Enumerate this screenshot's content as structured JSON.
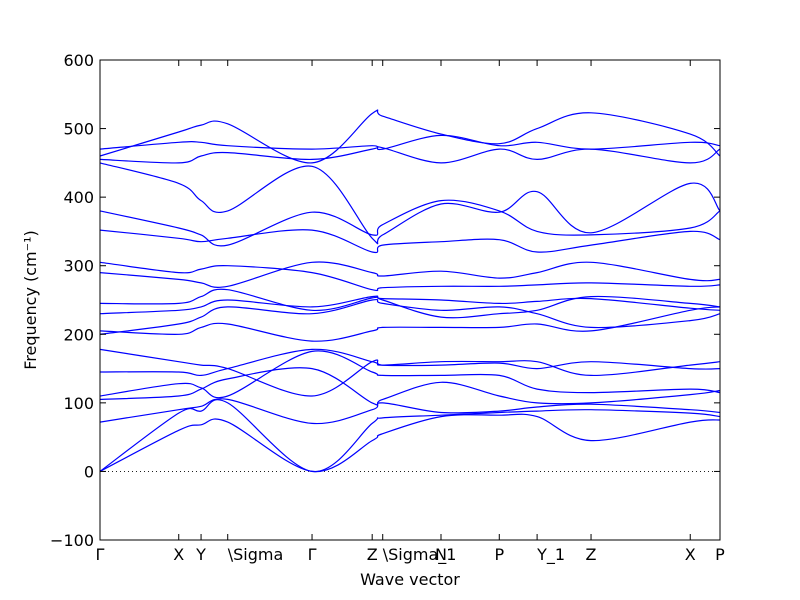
{
  "chart_data": {
    "type": "line",
    "xlabel": "Wave vector",
    "ylabel": "Frequency (cm⁻¹)",
    "ylim": [
      -100,
      600
    ],
    "yticks": [
      -100,
      0,
      100,
      200,
      300,
      400,
      500,
      600
    ],
    "zero_line": true,
    "xlim": [
      0,
      1
    ],
    "high_symmetry_points": [
      {
        "label": "Γ",
        "x": 0.0
      },
      {
        "label": "X",
        "x": 0.127
      },
      {
        "label": "Y",
        "x": 0.163
      },
      {
        "label": "\\Sigma",
        "x": 0.206
      },
      {
        "label": "Γ",
        "x": 0.342
      },
      {
        "label": "Z",
        "x": 0.439
      },
      {
        "label": "\\Sigma_1",
        "x": 0.456
      },
      {
        "label": "N",
        "x": 0.55
      },
      {
        "label": "P",
        "x": 0.644
      },
      {
        "label": "Y_1",
        "x": 0.705
      },
      {
        "label": "Z",
        "x": 0.792
      },
      {
        "label": "X",
        "x": 0.952
      },
      {
        "label": "P",
        "x": 1.0
      }
    ],
    "series": [
      {
        "values": [
          [
            0.0,
            0
          ],
          [
            0.127,
            60
          ],
          [
            0.163,
            68
          ],
          [
            0.206,
            72
          ],
          [
            0.342,
            0
          ],
          [
            0.439,
            45
          ],
          [
            0.456,
            55
          ],
          [
            0.55,
            80
          ],
          [
            0.644,
            82
          ],
          [
            0.705,
            80
          ],
          [
            0.792,
            45
          ],
          [
            0.952,
            72
          ],
          [
            1.0,
            75
          ]
        ]
      },
      {
        "values": [
          [
            0.0,
            0
          ],
          [
            0.127,
            85
          ],
          [
            0.163,
            88
          ],
          [
            0.206,
            100
          ],
          [
            0.342,
            0
          ],
          [
            0.439,
            70
          ],
          [
            0.456,
            78
          ],
          [
            0.55,
            82
          ],
          [
            0.644,
            86
          ],
          [
            0.705,
            88
          ],
          [
            0.792,
            90
          ],
          [
            0.952,
            85
          ],
          [
            1.0,
            80
          ]
        ]
      },
      {
        "values": [
          [
            0.0,
            72
          ],
          [
            0.127,
            90
          ],
          [
            0.163,
            95
          ],
          [
            0.206,
            105
          ],
          [
            0.342,
            70
          ],
          [
            0.439,
            90
          ],
          [
            0.456,
            100
          ],
          [
            0.55,
            86
          ],
          [
            0.644,
            88
          ],
          [
            0.705,
            94
          ],
          [
            0.792,
            98
          ],
          [
            0.952,
            90
          ],
          [
            1.0,
            86
          ]
        ]
      },
      {
        "values": [
          [
            0.0,
            105
          ],
          [
            0.127,
            110
          ],
          [
            0.163,
            120
          ],
          [
            0.206,
            135
          ],
          [
            0.342,
            150
          ],
          [
            0.439,
            100
          ],
          [
            0.456,
            105
          ],
          [
            0.55,
            130
          ],
          [
            0.644,
            110
          ],
          [
            0.705,
            100
          ],
          [
            0.792,
            100
          ],
          [
            0.952,
            112
          ],
          [
            1.0,
            118
          ]
        ]
      },
      {
        "values": [
          [
            0.0,
            110
          ],
          [
            0.127,
            128
          ],
          [
            0.163,
            122
          ],
          [
            0.206,
            110
          ],
          [
            0.342,
            175
          ],
          [
            0.439,
            145
          ],
          [
            0.456,
            140
          ],
          [
            0.55,
            140
          ],
          [
            0.644,
            140
          ],
          [
            0.705,
            120
          ],
          [
            0.792,
            115
          ],
          [
            0.952,
            120
          ],
          [
            1.0,
            115
          ]
        ]
      },
      {
        "values": [
          [
            0.0,
            145
          ],
          [
            0.127,
            145
          ],
          [
            0.163,
            140
          ],
          [
            0.206,
            150
          ],
          [
            0.342,
            178
          ],
          [
            0.439,
            160
          ],
          [
            0.456,
            155
          ],
          [
            0.55,
            160
          ],
          [
            0.644,
            160
          ],
          [
            0.705,
            160
          ],
          [
            0.792,
            140
          ],
          [
            0.952,
            155
          ],
          [
            1.0,
            160
          ]
        ]
      },
      {
        "values": [
          [
            0.0,
            178
          ],
          [
            0.127,
            160
          ],
          [
            0.163,
            155
          ],
          [
            0.206,
            150
          ],
          [
            0.342,
            110
          ],
          [
            0.439,
            160
          ],
          [
            0.456,
            155
          ],
          [
            0.55,
            155
          ],
          [
            0.644,
            158
          ],
          [
            0.705,
            150
          ],
          [
            0.792,
            160
          ],
          [
            0.952,
            150
          ],
          [
            1.0,
            150
          ]
        ]
      },
      {
        "values": [
          [
            0.0,
            200
          ],
          [
            0.127,
            215
          ],
          [
            0.163,
            225
          ],
          [
            0.206,
            240
          ],
          [
            0.342,
            230
          ],
          [
            0.439,
            250
          ],
          [
            0.456,
            245
          ],
          [
            0.55,
            235
          ],
          [
            0.644,
            240
          ],
          [
            0.705,
            230
          ],
          [
            0.792,
            210
          ],
          [
            0.952,
            220
          ],
          [
            1.0,
            230
          ]
        ]
      },
      {
        "values": [
          [
            0.0,
            205
          ],
          [
            0.127,
            200
          ],
          [
            0.163,
            210
          ],
          [
            0.206,
            215
          ],
          [
            0.342,
            190
          ],
          [
            0.439,
            205
          ],
          [
            0.456,
            210
          ],
          [
            0.55,
            210
          ],
          [
            0.644,
            210
          ],
          [
            0.705,
            215
          ],
          [
            0.792,
            205
          ],
          [
            0.952,
            235
          ],
          [
            1.0,
            240
          ]
        ]
      },
      {
        "values": [
          [
            0.0,
            230
          ],
          [
            0.127,
            235
          ],
          [
            0.163,
            240
          ],
          [
            0.206,
            250
          ],
          [
            0.342,
            240
          ],
          [
            0.439,
            255
          ],
          [
            0.456,
            250
          ],
          [
            0.55,
            225
          ],
          [
            0.644,
            230
          ],
          [
            0.705,
            235
          ],
          [
            0.792,
            255
          ],
          [
            0.952,
            245
          ],
          [
            1.0,
            240
          ]
        ]
      },
      {
        "values": [
          [
            0.0,
            245
          ],
          [
            0.127,
            245
          ],
          [
            0.163,
            255
          ],
          [
            0.206,
            265
          ],
          [
            0.342,
            235
          ],
          [
            0.439,
            253
          ],
          [
            0.456,
            252
          ],
          [
            0.55,
            250
          ],
          [
            0.644,
            245
          ],
          [
            0.705,
            248
          ],
          [
            0.792,
            252
          ],
          [
            0.952,
            238
          ],
          [
            1.0,
            235
          ]
        ]
      },
      {
        "values": [
          [
            0.0,
            290
          ],
          [
            0.127,
            280
          ],
          [
            0.163,
            275
          ],
          [
            0.206,
            270
          ],
          [
            0.342,
            305
          ],
          [
            0.439,
            290
          ],
          [
            0.456,
            285
          ],
          [
            0.55,
            292
          ],
          [
            0.644,
            282
          ],
          [
            0.705,
            290
          ],
          [
            0.792,
            305
          ],
          [
            0.952,
            280
          ],
          [
            1.0,
            280
          ]
        ]
      },
      {
        "values": [
          [
            0.0,
            305
          ],
          [
            0.127,
            290
          ],
          [
            0.163,
            295
          ],
          [
            0.206,
            300
          ],
          [
            0.342,
            290
          ],
          [
            0.439,
            265
          ],
          [
            0.456,
            268
          ],
          [
            0.55,
            270
          ],
          [
            0.644,
            270
          ],
          [
            0.705,
            272
          ],
          [
            0.792,
            275
          ],
          [
            0.952,
            270
          ],
          [
            1.0,
            272
          ]
        ]
      },
      {
        "values": [
          [
            0.0,
            352
          ],
          [
            0.127,
            340
          ],
          [
            0.163,
            335
          ],
          [
            0.206,
            340
          ],
          [
            0.342,
            352
          ],
          [
            0.439,
            320
          ],
          [
            0.456,
            330
          ],
          [
            0.55,
            335
          ],
          [
            0.644,
            338
          ],
          [
            0.705,
            320
          ],
          [
            0.792,
            330
          ],
          [
            0.952,
            350
          ],
          [
            1.0,
            338
          ]
        ]
      },
      {
        "values": [
          [
            0.0,
            380
          ],
          [
            0.127,
            355
          ],
          [
            0.163,
            345
          ],
          [
            0.206,
            330
          ],
          [
            0.342,
            378
          ],
          [
            0.439,
            345
          ],
          [
            0.456,
            360
          ],
          [
            0.55,
            395
          ],
          [
            0.644,
            380
          ],
          [
            0.705,
            350
          ],
          [
            0.792,
            345
          ],
          [
            0.952,
            355
          ],
          [
            1.0,
            380
          ]
        ]
      },
      {
        "values": [
          [
            0.0,
            450
          ],
          [
            0.127,
            420
          ],
          [
            0.163,
            395
          ],
          [
            0.206,
            380
          ],
          [
            0.342,
            445
          ],
          [
            0.439,
            340
          ],
          [
            0.456,
            345
          ],
          [
            0.55,
            390
          ],
          [
            0.644,
            378
          ],
          [
            0.705,
            408
          ],
          [
            0.792,
            348
          ],
          [
            0.952,
            420
          ],
          [
            1.0,
            380
          ]
        ]
      },
      {
        "values": [
          [
            0.0,
            455
          ],
          [
            0.127,
            450
          ],
          [
            0.163,
            460
          ],
          [
            0.206,
            465
          ],
          [
            0.342,
            455
          ],
          [
            0.439,
            470
          ],
          [
            0.456,
            472
          ],
          [
            0.55,
            450
          ],
          [
            0.644,
            470
          ],
          [
            0.705,
            455
          ],
          [
            0.792,
            470
          ],
          [
            0.952,
            450
          ],
          [
            1.0,
            470
          ]
        ]
      },
      {
        "values": [
          [
            0.0,
            470
          ],
          [
            0.127,
            480
          ],
          [
            0.163,
            480
          ],
          [
            0.206,
            475
          ],
          [
            0.342,
            470
          ],
          [
            0.439,
            475
          ],
          [
            0.456,
            470
          ],
          [
            0.55,
            490
          ],
          [
            0.644,
            475
          ],
          [
            0.705,
            480
          ],
          [
            0.792,
            470
          ],
          [
            0.952,
            480
          ],
          [
            1.0,
            475
          ]
        ]
      },
      {
        "values": [
          [
            0.0,
            460
          ],
          [
            0.127,
            495
          ],
          [
            0.163,
            505
          ],
          [
            0.206,
            507
          ],
          [
            0.342,
            450
          ],
          [
            0.439,
            522
          ],
          [
            0.456,
            518
          ],
          [
            0.55,
            492
          ],
          [
            0.644,
            478
          ],
          [
            0.705,
            500
          ],
          [
            0.792,
            523
          ],
          [
            0.952,
            492
          ],
          [
            1.0,
            460
          ]
        ]
      }
    ]
  }
}
